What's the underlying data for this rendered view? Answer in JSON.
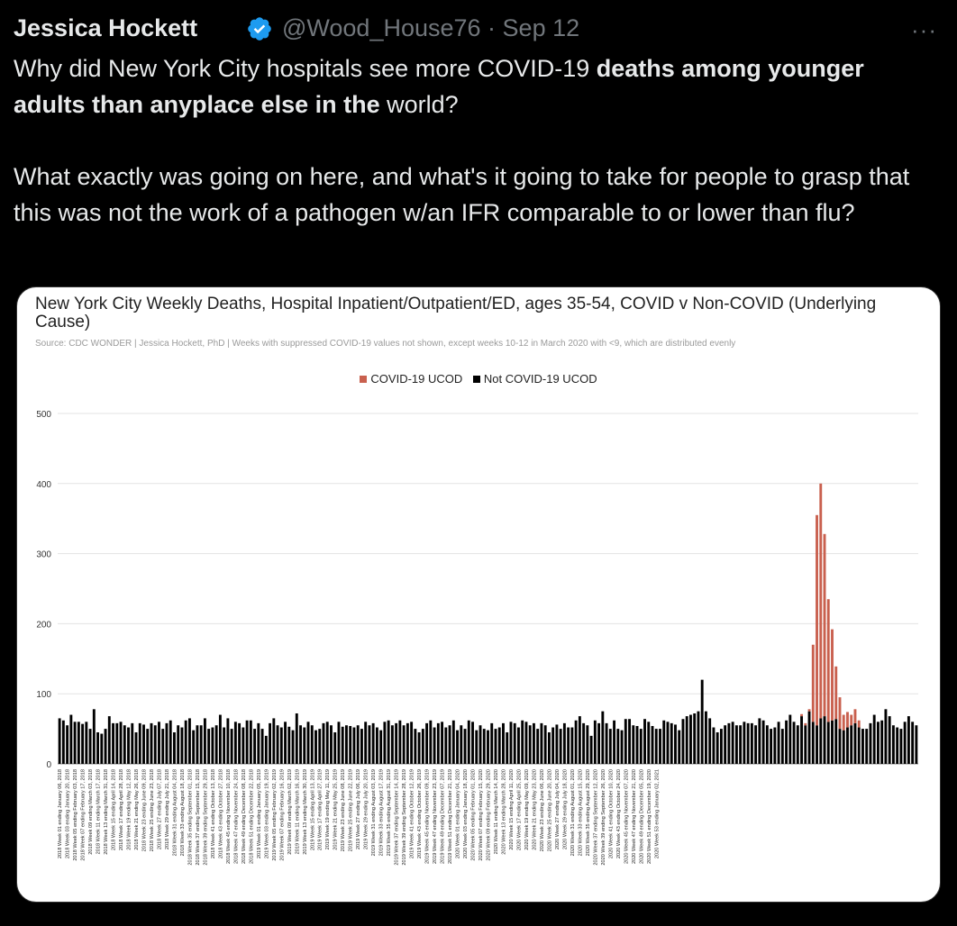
{
  "tweet": {
    "display_name": "Jessica Hockett",
    "handle_line": "@Wood_House76 · Sep 12",
    "more_label": "···",
    "verified_icon": "verified-badge-icon",
    "accent_color": "#1d9bf0",
    "text": {
      "p1_a": "Why did New York City hospitals see more COVID-19 ",
      "p1_b": "deaths among younger adults than anyplace else in the",
      "p1_c": " world?",
      "p2": "What exactly was going on here, and what's it going to take for people to grasp that this was not the work of a pathogen w/an IFR comparable to or lower than flu?"
    }
  },
  "chart_data": {
    "type": "bar",
    "stacked": true,
    "title": "New York City Weekly Deaths, Hospital Inpatient/Outpatient/ED, ages 35-54, COVID v Non-COVID (Underlying Cause)",
    "subtitle": "Source: CDC WONDER | Jessica Hockett, PhD | Weeks with suppressed COVID-19 values not shown, except weeks 10-12 in March 2020 with <9, which are distributed evenly",
    "legend_position": "top-center",
    "grid": true,
    "ylim": [
      0,
      500
    ],
    "yticks": [
      0,
      100,
      200,
      300,
      400,
      500
    ],
    "xtick_labels": [
      "2018 Week 01 ending January 06, 2018",
      "2018 Week 03 ending January 20, 2018",
      "2018 Week 05 ending February 03, 2018",
      "2018 Week 07 ending February 17, 2018",
      "2018 Week 09 ending March 03, 2018",
      "2018 Week 11 ending March 17, 2018",
      "2018 Week 13 ending March 31, 2018",
      "2018 Week 15 ending April 14, 2018",
      "2018 Week 17 ending April 28, 2018",
      "2018 Week 19 ending May 12, 2018",
      "2018 Week 21 ending May 26, 2018",
      "2018 Week 23 ending June 09, 2018",
      "2018 Week 25 ending June 23, 2018",
      "2018 Week 27 ending July 07, 2018",
      "2018 Week 29 ending July 21, 2018",
      "2018 Week 31 ending August 04, 2018",
      "2018 Week 33 ending August 18, 2018",
      "2018 Week 35 ending September 01, 2018",
      "2018 Week 37 ending September 15, 2018",
      "2018 Week 39 ending September 29, 2018",
      "2018 Week 41 ending October 13, 2018",
      "2018 Week 43 ending October 27, 2018",
      "2018 Week 45 ending November 10, 2018",
      "2018 Week 47 ending November 24, 2018",
      "2018 Week 49 ending December 08, 2018",
      "2018 Week 51 ending December 22, 2018",
      "2019 Week 01 ending January 05, 2019",
      "2019 Week 03 ending January 19, 2019",
      "2019 Week 05 ending February 02, 2019",
      "2019 Week 07 ending February 16, 2019",
      "2019 Week 09 ending March 02, 2019",
      "2019 Week 11 ending March 16, 2019",
      "2019 Week 13 ending March 30, 2019",
      "2019 Week 15 ending April 13, 2019",
      "2019 Week 17 ending April 27, 2019",
      "2019 Week 19 ending May 11, 2019",
      "2019 Week 21 ending May 25, 2019",
      "2019 Week 23 ending June 08, 2019",
      "2019 Week 25 ending June 22, 2019",
      "2019 Week 27 ending July 06, 2019",
      "2019 Week 29 ending July 20, 2019",
      "2019 Week 31 ending August 03, 2019",
      "2019 Week 33 ending August 17, 2019",
      "2019 Week 35 ending August 31, 2019",
      "2019 Week 37 ending September 14, 2019",
      "2019 Week 39 ending September 28, 2019",
      "2019 Week 41 ending October 12, 2019",
      "2019 Week 43 ending October 26, 2019",
      "2019 Week 45 ending November 09, 2019",
      "2019 Week 47 ending November 23, 2019",
      "2019 Week 49 ending December 07, 2019",
      "2019 Week 51 ending December 21, 2019",
      "2020 Week 01 ending January 04, 2020",
      "2020 Week 03 ending January 18, 2020",
      "2020 Week 05 ending February 01, 2020",
      "2020 Week 07 ending February 15, 2020",
      "2020 Week 09 ending February 29, 2020",
      "2020 Week 11 ending March 14, 2020",
      "2020 Week 13 ending March 28, 2020",
      "2020 Week 15 ending April 11, 2020",
      "2020 Week 17 ending April 25, 2020",
      "2020 Week 19 ending May 09, 2020",
      "2020 Week 21 ending May 23, 2020",
      "2020 Week 23 ending June 06, 2020",
      "2020 Week 25 ending June 20, 2020",
      "2020 Week 27 ending July 04, 2020",
      "2020 Week 29 ending July 18, 2020",
      "2020 Week 31 ending August 01, 2020",
      "2020 Week 33 ending August 15, 2020",
      "2020 Week 35 ending August 29, 2020",
      "2020 Week 37 ending September 12, 2020",
      "2020 Week 39 ending September 26, 2020",
      "2020 Week 41 ending October 10, 2020",
      "2020 Week 43 ending October 24, 2020",
      "2020 Week 45 ending November 07, 2020",
      "2020 Week 47 ending November 21, 2020",
      "2020 Week 49 ending December 05, 2020",
      "2020 Week 51 ending December 19, 2020",
      "2020 Week 53 ending January 02, 2021"
    ],
    "series": [
      {
        "name": "COVID-19 UCOD",
        "color": "#c9604e",
        "values": [
          0,
          0,
          0,
          0,
          0,
          0,
          0,
          0,
          0,
          0,
          0,
          0,
          0,
          0,
          0,
          0,
          0,
          0,
          0,
          0,
          0,
          0,
          0,
          0,
          0,
          0,
          0,
          0,
          0,
          0,
          0,
          0,
          0,
          0,
          0,
          0,
          0,
          0,
          0,
          0,
          0,
          0,
          0,
          0,
          0,
          0,
          0,
          0,
          0,
          0,
          0,
          0,
          0,
          0,
          0,
          0,
          0,
          0,
          0,
          0,
          0,
          0,
          0,
          0,
          0,
          0,
          0,
          0,
          0,
          0,
          0,
          0,
          0,
          0,
          0,
          0,
          0,
          0,
          0,
          0,
          0,
          0,
          0,
          0,
          0,
          0,
          0,
          0,
          0,
          0,
          0,
          0,
          0,
          0,
          0,
          0,
          0,
          0,
          0,
          0,
          0,
          0,
          0,
          0,
          0,
          0,
          0,
          0,
          0,
          0,
          0,
          0,
          0,
          0,
          0,
          0,
          0,
          0,
          0,
          0,
          0,
          0,
          0,
          0,
          0,
          0,
          0,
          0,
          0,
          0,
          0,
          0,
          0,
          0,
          0,
          0,
          0,
          0,
          0,
          0,
          0,
          0,
          0,
          0,
          0,
          0,
          0,
          0,
          0,
          0,
          0,
          0,
          0,
          0,
          0,
          0,
          0,
          0,
          0,
          0,
          0,
          0,
          0,
          0,
          0,
          0,
          0,
          0,
          0,
          0,
          0,
          0,
          0,
          0,
          0,
          0,
          0,
          0,
          0,
          0,
          0,
          0,
          0,
          0,
          0,
          0,
          0,
          0,
          0,
          0,
          0,
          0,
          0,
          0,
          3,
          3,
          3,
          110,
          300,
          335,
          260,
          175,
          130,
          75,
          45,
          22,
          22,
          15,
          20,
          10,
          0,
          0,
          0,
          0,
          0,
          0,
          0,
          0,
          0,
          0,
          0,
          0,
          0,
          0,
          0,
          0,
          0,
          0,
          0,
          0,
          0,
          0,
          0,
          0,
          0,
          0,
          0,
          0,
          0,
          0,
          0,
          0,
          0,
          0,
          0,
          0,
          0,
          0,
          0,
          0,
          0,
          0,
          0,
          0,
          0,
          15,
          10
        ]
      },
      {
        "name": "Not COVID-19 UCOD",
        "color": "#000000",
        "values": [
          65,
          62,
          55,
          70,
          60,
          60,
          57,
          60,
          50,
          78,
          45,
          43,
          50,
          68,
          58,
          58,
          60,
          55,
          52,
          58,
          45,
          58,
          56,
          50,
          58,
          55,
          60,
          50,
          58,
          62,
          45,
          55,
          52,
          62,
          65,
          48,
          55,
          55,
          65,
          50,
          52,
          55,
          70,
          52,
          65,
          50,
          60,
          58,
          52,
          62,
          62,
          50,
          58,
          50,
          40,
          58,
          65,
          55,
          52,
          60,
          53,
          48,
          72,
          55,
          52,
          60,
          55,
          48,
          50,
          58,
          60,
          55,
          45,
          60,
          53,
          55,
          54,
          52,
          55,
          50,
          60,
          55,
          58,
          52,
          48,
          60,
          62,
          55,
          58,
          62,
          55,
          58,
          60,
          50,
          45,
          50,
          58,
          62,
          52,
          58,
          60,
          52,
          55,
          62,
          48,
          55,
          50,
          62,
          60,
          48,
          55,
          50,
          48,
          58,
          50,
          52,
          58,
          45,
          60,
          58,
          52,
          62,
          60,
          55,
          58,
          50,
          58,
          55,
          45,
          52,
          56,
          50,
          58,
          52,
          52,
          62,
          68,
          58,
          55,
          40,
          62,
          58,
          75,
          58,
          50,
          62,
          50,
          48,
          64,
          64,
          55,
          54,
          50,
          64,
          60,
          54,
          50,
          50,
          62,
          60,
          58,
          56,
          48,
          64,
          68,
          70,
          72,
          75,
          120,
          75,
          65,
          52,
          45,
          50,
          55,
          58,
          60,
          55,
          55,
          60,
          58,
          58,
          55,
          65,
          62,
          55,
          50,
          52,
          60,
          50,
          62,
          70,
          60,
          55,
          68,
          55,
          75,
          60,
          55,
          65,
          68,
          60,
          62,
          64,
          50,
          48,
          52,
          55,
          58,
          52,
          50,
          50,
          58,
          70,
          60,
          62,
          78,
          68,
          55,
          52,
          50,
          60,
          68,
          60,
          55
        ]
      }
    ]
  }
}
